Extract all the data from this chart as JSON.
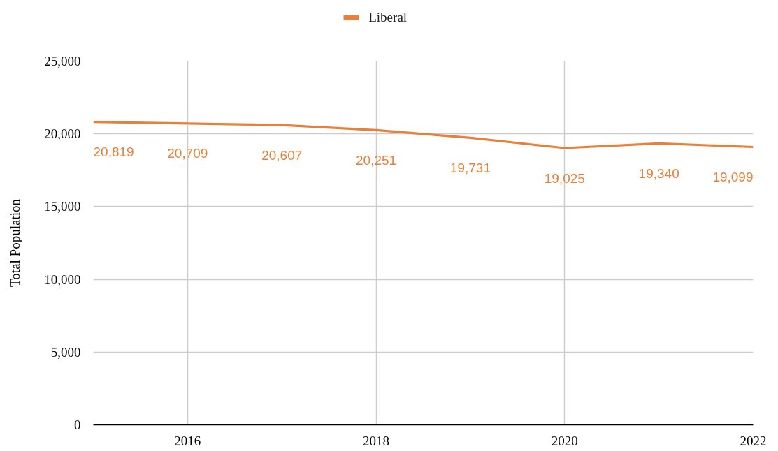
{
  "chart_data": {
    "type": "line",
    "ylabel": "Total Population",
    "x": [
      2015,
      2016,
      2017,
      2018,
      2019,
      2020,
      2021,
      2022
    ],
    "series": [
      {
        "name": "Liberal",
        "color": "#e8803a",
        "values": [
          20819,
          20709,
          20607,
          20251,
          19731,
          19025,
          19340,
          19099
        ],
        "value_labels": [
          "20,819",
          "20,709",
          "20,607",
          "20,251",
          "19,731",
          "19,025",
          "19,340",
          "19,099"
        ]
      }
    ],
    "xlim": [
      2015,
      2022
    ],
    "xticks": [
      2016,
      2018,
      2020,
      2022
    ],
    "ylim": [
      0,
      25000
    ],
    "yticks": [
      0,
      {
        "value": 5000,
        "label": "5,000"
      },
      {
        "value": 10000,
        "label": "10,000"
      },
      {
        "value": 15000,
        "label": "15,000"
      },
      {
        "value": 20000,
        "label": "20,000"
      },
      {
        "value": 25000,
        "label": "25,000"
      }
    ],
    "grid": true,
    "legend": "top"
  }
}
